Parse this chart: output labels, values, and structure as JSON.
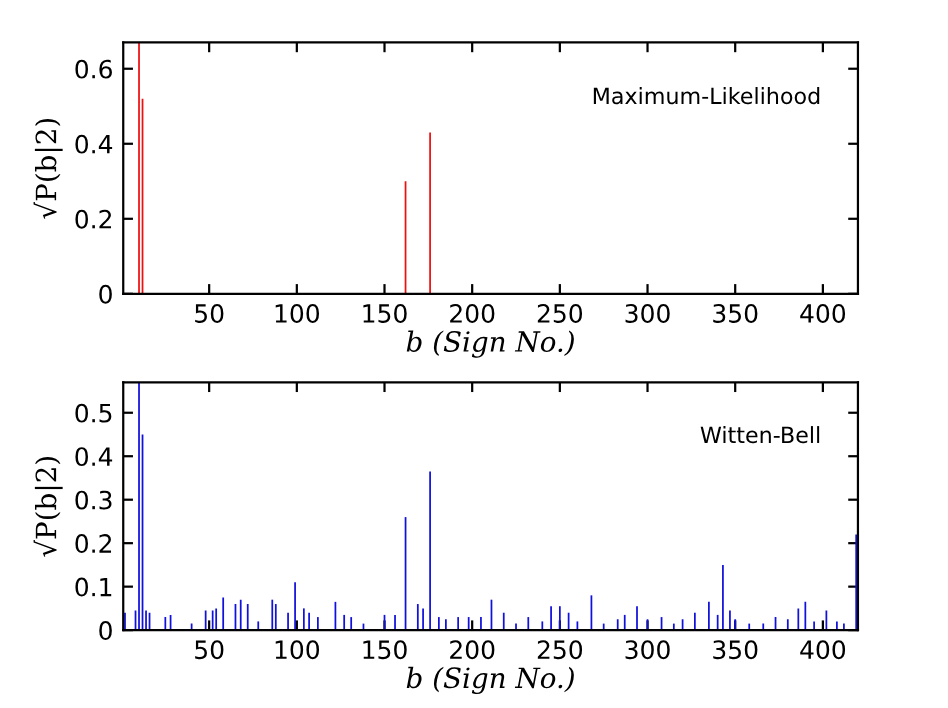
{
  "chart_data": [
    {
      "type": "bar",
      "xlabel": "b (Sign No.)",
      "ylabel": "√P(b|2)",
      "annotations": [
        "Maximum-Likelihood"
      ],
      "x": [
        10,
        12,
        162,
        176
      ],
      "series": [
        {
          "color": "#ee1111",
          "values": [
            0.67,
            0.52,
            0.3,
            0.43
          ]
        }
      ],
      "xlim": [
        1,
        420
      ],
      "xticks": [
        50,
        100,
        150,
        200,
        250,
        300,
        350,
        400
      ],
      "ylim": [
        0,
        0.67
      ],
      "yticks": [
        0,
        0.2,
        0.4,
        0.6
      ],
      "grid": false,
      "legend": false
    },
    {
      "type": "bar",
      "xlabel": "b (Sign No.)",
      "ylabel": "√P(b|2)",
      "annotations": [
        "Witten-Bell"
      ],
      "x": [
        2,
        8,
        10,
        12,
        14,
        16,
        25,
        28,
        40,
        48,
        52,
        54,
        58,
        65,
        68,
        72,
        78,
        86,
        88,
        95,
        99,
        104,
        107,
        112,
        122,
        127,
        131,
        138,
        150,
        156,
        162,
        169,
        172,
        176,
        181,
        185,
        192,
        198,
        205,
        211,
        218,
        225,
        232,
        240,
        245,
        250,
        255,
        260,
        268,
        275,
        283,
        287,
        294,
        300,
        308,
        315,
        320,
        327,
        335,
        340,
        343,
        347,
        350,
        358,
        366,
        373,
        380,
        386,
        390,
        395,
        402,
        408,
        412,
        419
      ],
      "series": [
        {
          "color": "#1111dd",
          "values": [
            0.04,
            0.045,
            0.57,
            0.45,
            0.045,
            0.04,
            0.03,
            0.035,
            0.015,
            0.045,
            0.045,
            0.05,
            0.075,
            0.06,
            0.07,
            0.06,
            0.02,
            0.07,
            0.06,
            0.04,
            0.11,
            0.05,
            0.04,
            0.03,
            0.065,
            0.035,
            0.03,
            0.015,
            0.035,
            0.035,
            0.26,
            0.06,
            0.05,
            0.365,
            0.03,
            0.025,
            0.03,
            0.03,
            0.03,
            0.07,
            0.04,
            0.015,
            0.03,
            0.02,
            0.055,
            0.055,
            0.04,
            0.02,
            0.08,
            0.015,
            0.025,
            0.035,
            0.055,
            0.025,
            0.03,
            0.015,
            0.025,
            0.04,
            0.065,
            0.035,
            0.15,
            0.045,
            0.025,
            0.015,
            0.015,
            0.03,
            0.025,
            0.05,
            0.065,
            0.02,
            0.045,
            0.02,
            0.015,
            0.22
          ]
        }
      ],
      "xlim": [
        1,
        420
      ],
      "xticks": [
        50,
        100,
        150,
        200,
        250,
        300,
        350,
        400
      ],
      "ylim": [
        0,
        0.57
      ],
      "yticks": [
        0,
        0.1,
        0.2,
        0.3,
        0.4,
        0.5
      ],
      "grid": false,
      "legend": false
    }
  ]
}
